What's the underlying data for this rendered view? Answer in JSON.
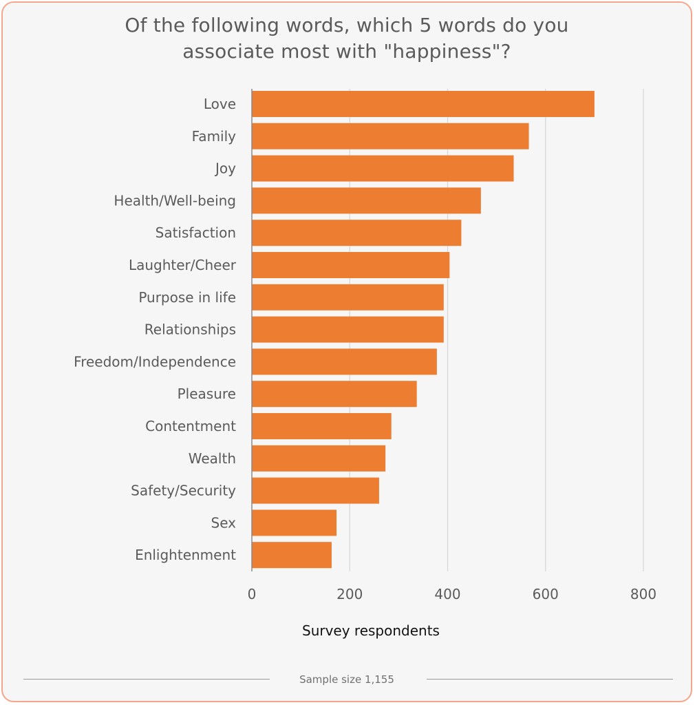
{
  "chart_data": {
    "type": "bar",
    "orientation": "horizontal",
    "title_lines": [
      "Of the following words, which 5 words do you",
      "associate most with \"happiness\"?"
    ],
    "categories": [
      "Love",
      "Family",
      "Joy",
      "Health/Well-being",
      "Satisfaction",
      "Laughter/Cheer",
      "Purpose in life",
      "Relationships",
      "Freedom/Independence",
      "Pleasure",
      "Contentment",
      "Wealth",
      "Safety/Security",
      "Sex",
      "Enlightenment"
    ],
    "values": [
      700,
      566,
      535,
      468,
      428,
      404,
      392,
      392,
      378,
      337,
      285,
      273,
      260,
      173,
      163
    ],
    "xlabel": "Survey respondents",
    "ylabel": "",
    "xlim": [
      0,
      800
    ],
    "xticks": [
      0,
      200,
      400,
      600,
      800
    ],
    "grid": true,
    "legend": "none",
    "bar_color": "#ed7d31",
    "footer": "Sample size 1,155"
  }
}
